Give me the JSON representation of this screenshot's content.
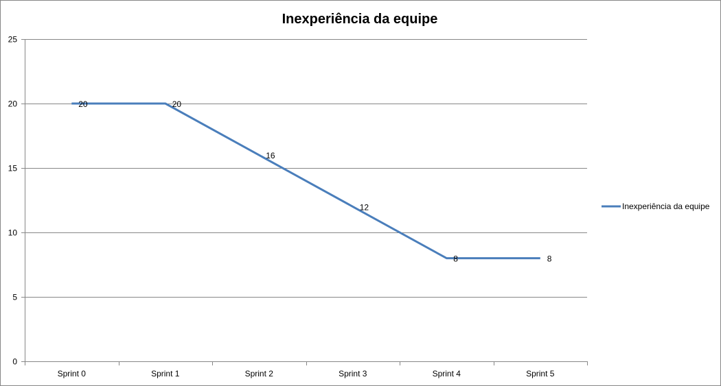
{
  "chart_data": {
    "type": "line",
    "title": "Inexperiência da equipe",
    "xlabel": "",
    "ylabel": "",
    "categories": [
      "Sprint 0",
      "Sprint 1",
      "Sprint 2",
      "Sprint 3",
      "Sprint 4",
      "Sprint 5"
    ],
    "series": [
      {
        "name": "Inexperiência da equipe",
        "values": [
          20,
          20,
          16,
          12,
          8,
          8
        ],
        "color": "#4a7ebb"
      }
    ],
    "ylim": [
      0,
      25
    ],
    "yticks": [
      0,
      5,
      10,
      15,
      20,
      25
    ],
    "grid": true,
    "legend": "right",
    "data_labels": true
  }
}
